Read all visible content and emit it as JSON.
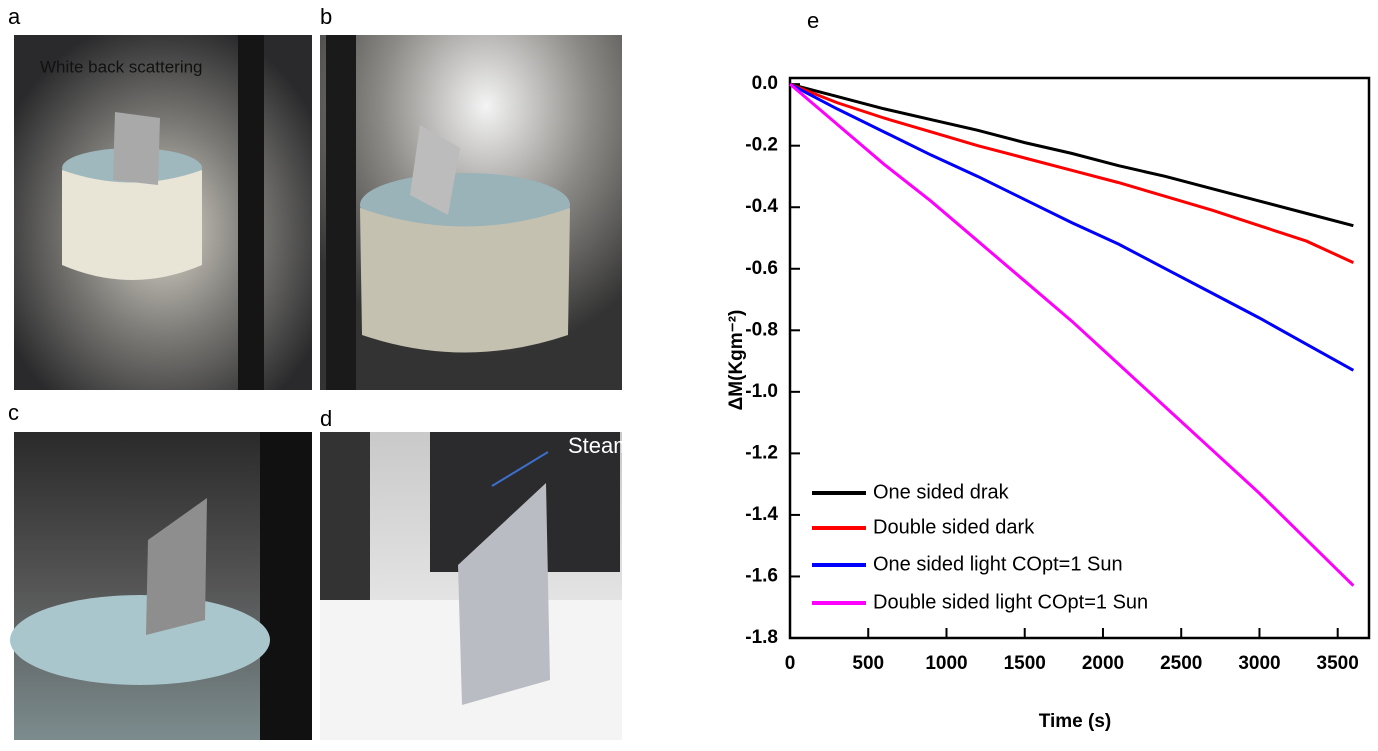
{
  "panels": [
    {
      "label": "a",
      "caption": "White back scattering"
    },
    {
      "label": "b"
    },
    {
      "label": "c"
    },
    {
      "label": "d",
      "caption": "Steam"
    }
  ],
  "chart_data": {
    "type": "line",
    "panel_label": "e",
    "x_label": "Time (s)",
    "y_label": "ΔM(Kgm⁻²)",
    "x": [
      0,
      300,
      600,
      900,
      1200,
      1500,
      1800,
      2100,
      2400,
      2700,
      3000,
      3300,
      3600
    ],
    "series": [
      {
        "name": "One sided drak",
        "color": "#000000",
        "values": [
          0,
          -0.04,
          -0.08,
          -0.115,
          -0.15,
          -0.19,
          -0.225,
          -0.265,
          -0.3,
          -0.34,
          -0.38,
          -0.42,
          -0.46
        ]
      },
      {
        "name": "Double sided dark",
        "color": "#ff0000",
        "values": [
          0,
          -0.06,
          -0.11,
          -0.155,
          -0.2,
          -0.24,
          -0.28,
          -0.32,
          -0.365,
          -0.41,
          -0.46,
          -0.51,
          -0.58
        ]
      },
      {
        "name": "One sided light COpt=1 Sun",
        "color": "#0000ff",
        "values": [
          0,
          -0.08,
          -0.155,
          -0.23,
          -0.3,
          -0.375,
          -0.45,
          -0.52,
          -0.6,
          -0.68,
          -0.76,
          -0.845,
          -0.93
        ]
      },
      {
        "name": "Double sided light COpt=1 Sun",
        "color": "#ff00ff",
        "values": [
          0,
          -0.13,
          -0.26,
          -0.38,
          -0.51,
          -0.64,
          -0.77,
          -0.91,
          -1.05,
          -1.19,
          -1.33,
          -1.48,
          -1.63
        ]
      }
    ],
    "xlim": [
      0,
      3700
    ],
    "ylim": [
      -1.8,
      0.02
    ],
    "xticks": [
      0,
      500,
      1000,
      1500,
      2000,
      2500,
      3000,
      3500
    ],
    "yticks": [
      {
        "value": 0,
        "label": "0.0"
      },
      -0.2,
      -0.4,
      -0.6,
      -0.8,
      {
        "value": -1,
        "label": "-1.0"
      },
      -1.2,
      -1.4,
      -1.6,
      -1.8
    ],
    "legend": "lower left"
  }
}
